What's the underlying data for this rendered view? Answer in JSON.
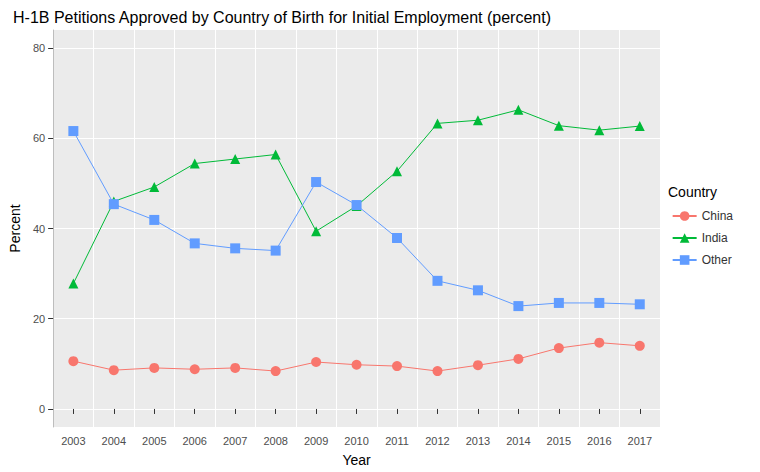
{
  "chart_data": {
    "type": "line",
    "title": "H-1B Petitions Approved by Country of Birth for Initial Employment (percent)",
    "x_label": "Year",
    "y_label": "Percent",
    "legend_title": "Country",
    "legend": "right",
    "grid": true,
    "categories": [
      "2003",
      "2004",
      "2005",
      "2006",
      "2007",
      "2008",
      "2009",
      "2010",
      "2011",
      "2012",
      "2013",
      "2014",
      "2015",
      "2016",
      "2017"
    ],
    "series": [
      {
        "name": "China",
        "color": "#F8766D",
        "marker": "circle",
        "values": [
          10.6,
          8.6,
          9.1,
          8.8,
          9.1,
          8.4,
          10.4,
          9.8,
          9.5,
          8.4,
          9.7,
          11.1,
          13.5,
          14.7,
          14.0
        ]
      },
      {
        "name": "India",
        "color": "#00BA38",
        "marker": "triangle",
        "values": [
          27.8,
          46.0,
          49.2,
          54.4,
          55.4,
          56.4,
          39.4,
          45.0,
          52.7,
          63.3,
          64.0,
          66.3,
          62.8,
          61.8,
          62.7
        ]
      },
      {
        "name": "Other",
        "color": "#619CFF",
        "marker": "square",
        "values": [
          61.6,
          45.4,
          41.9,
          36.7,
          35.6,
          35.1,
          50.3,
          45.2,
          37.9,
          28.4,
          26.3,
          22.8,
          23.5,
          23.5,
          23.2
        ]
      }
    ],
    "ylim": [
      -4,
      84
    ],
    "yticks": [
      0,
      20,
      40,
      60,
      80
    ]
  }
}
